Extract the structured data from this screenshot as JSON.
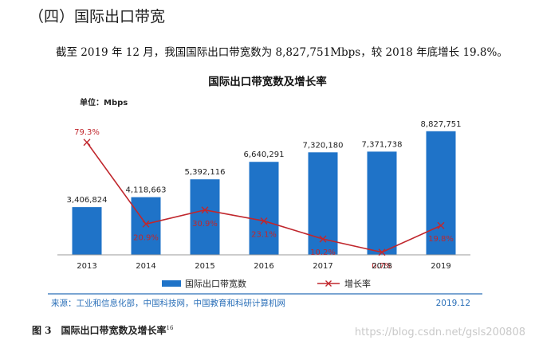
{
  "heading": {
    "section_title": "（四）国际出口带宽"
  },
  "paragraph": {
    "text": "截至 2019 年 12 月，我国国际出口带宽数为 8,827,751Mbps，较 2018 年底增长 19.8%。"
  },
  "colors": {
    "bar": "#1f73c8",
    "line": "#c0272d",
    "source_text": "#2a6fb8",
    "rule": "#2a6fb8"
  },
  "chart_data": {
    "type": "bar",
    "title": "国际出口带宽数及增长率",
    "unit_label": "单位：Mbps",
    "categories": [
      "2013",
      "2014",
      "2015",
      "2016",
      "2017",
      "2018",
      "2019"
    ],
    "series": [
      {
        "name": "国际出口带宽数",
        "type": "bar",
        "values": [
          3406824,
          4118663,
          5392116,
          6640291,
          7320180,
          7371738,
          8827751
        ],
        "labels": [
          "3,406,824",
          "4,118,663",
          "5,392,116",
          "6,640,291",
          "7,320,180",
          "7,371,738",
          "8,827,751"
        ]
      },
      {
        "name": "增长率",
        "type": "line",
        "values": [
          79.3,
          20.9,
          30.9,
          23.1,
          10.2,
          0.7,
          19.8
        ],
        "labels": [
          "79.3%",
          "20.9%",
          "30.9%",
          "23.1%",
          "10.2%",
          "0.7%",
          "19.8%"
        ]
      }
    ],
    "ylim_bar": [
      0,
      9100000
    ],
    "ylim_line": [
      0,
      90
    ]
  },
  "source": {
    "text": "来源：工业和信息化部，中国科技网，中国教育和科研计算机网",
    "date": "2019.12"
  },
  "caption": {
    "text": "图 3　国际出口带宽数及增长率",
    "footnote": "16"
  },
  "watermark": {
    "text": "https://blog.csdn.net/gsls200808"
  }
}
